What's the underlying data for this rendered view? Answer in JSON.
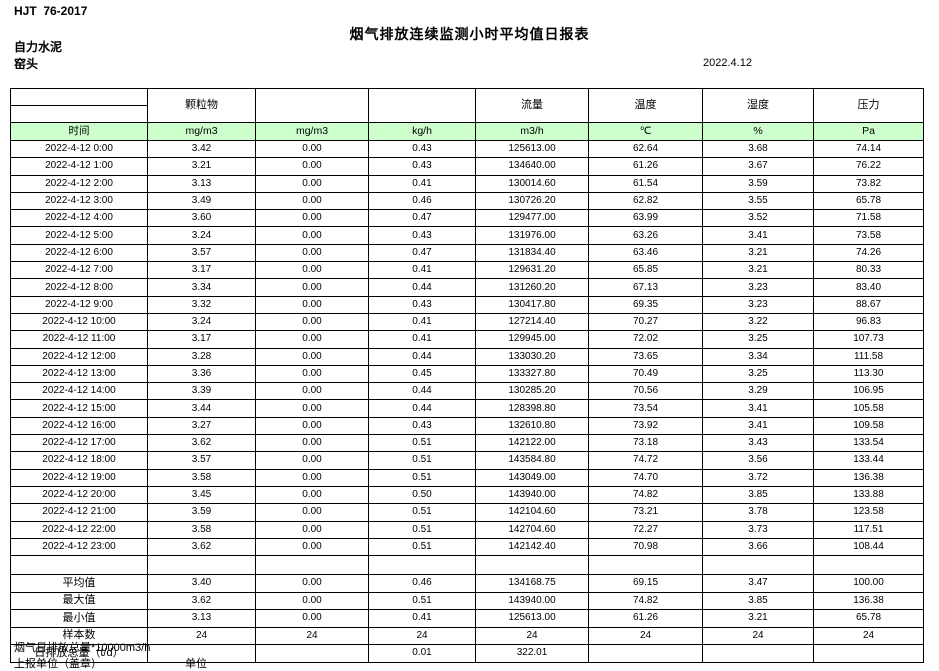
{
  "page": {
    "doc_code": "HJT  76-2017",
    "title": "烟气排放连续监测小时平均值日报表",
    "company": "自力水泥",
    "station": "窑头",
    "date": "2022.4.12"
  },
  "table": {
    "unit_row_bg": "#ccffcc",
    "group_headers": [
      "",
      "颗粒物",
      "",
      "",
      "流量",
      "温度",
      "湿度",
      "压力"
    ],
    "unit_row": [
      "时间",
      "mg/m3",
      "mg/m3",
      "kg/h",
      "m3/h",
      "℃",
      "%",
      "Pa"
    ],
    "rows": [
      [
        "2022-4-12 0:00",
        "3.42",
        "0.00",
        "0.43",
        "125613.00",
        "62.64",
        "3.68",
        "74.14"
      ],
      [
        "2022-4-12 1:00",
        "3.21",
        "0.00",
        "0.43",
        "134640.00",
        "61.26",
        "3.67",
        "76.22"
      ],
      [
        "2022-4-12 2:00",
        "3.13",
        "0.00",
        "0.41",
        "130014.60",
        "61.54",
        "3.59",
        "73.82"
      ],
      [
        "2022-4-12 3:00",
        "3.49",
        "0.00",
        "0.46",
        "130726.20",
        "62.82",
        "3.55",
        "65.78"
      ],
      [
        "2022-4-12 4:00",
        "3.60",
        "0.00",
        "0.47",
        "129477.00",
        "63.99",
        "3.52",
        "71.58"
      ],
      [
        "2022-4-12 5:00",
        "3.24",
        "0.00",
        "0.43",
        "131976.00",
        "63.26",
        "3.41",
        "73.58"
      ],
      [
        "2022-4-12 6:00",
        "3.57",
        "0.00",
        "0.47",
        "131834.40",
        "63.46",
        "3.21",
        "74.26"
      ],
      [
        "2022-4-12 7:00",
        "3.17",
        "0.00",
        "0.41",
        "129631.20",
        "65.85",
        "3.21",
        "80.33"
      ],
      [
        "2022-4-12 8:00",
        "3.34",
        "0.00",
        "0.44",
        "131260.20",
        "67.13",
        "3.23",
        "83.40"
      ],
      [
        "2022-4-12 9:00",
        "3.32",
        "0.00",
        "0.43",
        "130417.80",
        "69.35",
        "3.23",
        "88.67"
      ],
      [
        "2022-4-12 10:00",
        "3.24",
        "0.00",
        "0.41",
        "127214.40",
        "70.27",
        "3.22",
        "96.83"
      ],
      [
        "2022-4-12 11:00",
        "3.17",
        "0.00",
        "0.41",
        "129945.00",
        "72.02",
        "3.25",
        "107.73"
      ],
      [
        "2022-4-12 12:00",
        "3.28",
        "0.00",
        "0.44",
        "133030.20",
        "73.65",
        "3.34",
        "111.58"
      ],
      [
        "2022-4-12 13:00",
        "3.36",
        "0.00",
        "0.45",
        "133327.80",
        "70.49",
        "3.25",
        "113.30"
      ],
      [
        "2022-4-12 14:00",
        "3.39",
        "0.00",
        "0.44",
        "130285.20",
        "70.56",
        "3.29",
        "106.95"
      ],
      [
        "2022-4-12 15:00",
        "3.44",
        "0.00",
        "0.44",
        "128398.80",
        "73.54",
        "3.41",
        "105.58"
      ],
      [
        "2022-4-12 16:00",
        "3.27",
        "0.00",
        "0.43",
        "132610.80",
        "73.92",
        "3.41",
        "109.58"
      ],
      [
        "2022-4-12 17:00",
        "3.62",
        "0.00",
        "0.51",
        "142122.00",
        "73.18",
        "3.43",
        "133.54"
      ],
      [
        "2022-4-12 18:00",
        "3.57",
        "0.00",
        "0.51",
        "143584.80",
        "74.72",
        "3.56",
        "133.44"
      ],
      [
        "2022-4-12 19:00",
        "3.58",
        "0.00",
        "0.51",
        "143049.00",
        "74.70",
        "3.72",
        "136.38"
      ],
      [
        "2022-4-12 20:00",
        "3.45",
        "0.00",
        "0.50",
        "143940.00",
        "74.82",
        "3.85",
        "133.88"
      ],
      [
        "2022-4-12 21:00",
        "3.59",
        "0.00",
        "0.51",
        "142104.60",
        "73.21",
        "3.78",
        "123.58"
      ],
      [
        "2022-4-12 22:00",
        "3.58",
        "0.00",
        "0.51",
        "142704.60",
        "72.27",
        "3.73",
        "117.51"
      ],
      [
        "2022-4-12 23:00",
        "3.62",
        "0.00",
        "0.51",
        "142142.40",
        "70.98",
        "3.66",
        "108.44"
      ]
    ],
    "summary_rows": [
      [
        "平均值",
        "3.40",
        "0.00",
        "0.46",
        "134168.75",
        "69.15",
        "3.47",
        "100.00"
      ],
      [
        "最大值",
        "3.62",
        "0.00",
        "0.51",
        "143940.00",
        "74.82",
        "3.85",
        "136.38"
      ],
      [
        "最小值",
        "3.13",
        "0.00",
        "0.41",
        "125613.00",
        "61.26",
        "3.21",
        "65.78"
      ],
      [
        "样本数",
        "24",
        "24",
        "24",
        "24",
        "24",
        "24",
        "24"
      ],
      [
        "日排放总量（t/d）",
        "",
        "",
        "0.01",
        "322.01",
        "",
        "",
        ""
      ]
    ]
  },
  "footer": {
    "note": "烟气日排放总量*10000m3/h",
    "report_unit_label": "上报单位（盖章）",
    "unit_label": "单位"
  }
}
